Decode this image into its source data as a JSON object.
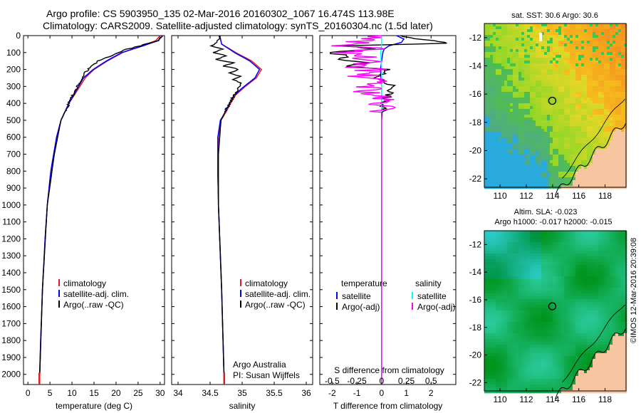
{
  "header": {
    "line1": "Argo profile: CS 5903950_135 02-Mar-2016 20160302_1067 16.474S 113.98E",
    "line2": "Climatology: CARS2009. Satellite-adjusted climatology: synTS_20160304.nc (1.5d later)"
  },
  "colors": {
    "climatology": "#e41a1c",
    "satellite": "#0000ff",
    "argo": "#000000",
    "sal_satellite": "#00ffff",
    "sal_argo": "#ff00ff",
    "land": "#f7c59f"
  },
  "depth_axis": {
    "ticks": [
      "0",
      "100",
      "200",
      "300",
      "400",
      "500",
      "600",
      "700",
      "800",
      "900",
      "1000",
      "1100",
      "1200",
      "1300",
      "1400",
      "1500",
      "1600",
      "1700",
      "1800",
      "1900",
      "2000"
    ],
    "values": [
      0,
      100,
      200,
      300,
      400,
      500,
      600,
      700,
      800,
      900,
      1000,
      1100,
      1200,
      1300,
      1400,
      1500,
      1600,
      1700,
      1800,
      1900,
      2000
    ],
    "ylim": [
      0,
      2060
    ]
  },
  "chart_data": [
    {
      "type": "line",
      "panel": "temperature",
      "xlabel": "temperature (deg C)",
      "xlim": [
        -1,
        31
      ],
      "xticks": [
        0,
        5,
        10,
        15,
        20,
        25,
        30
      ],
      "xtick_labels": [
        "0",
        "5",
        "10",
        "15",
        "20",
        "25",
        "30"
      ],
      "legend": [
        "climatology",
        "satellite-adj. clim.",
        "Argo(..raw -QC)"
      ],
      "series": [
        {
          "name": "climatology",
          "depth": [
            0,
            30,
            60,
            100,
            150,
            200,
            250,
            300,
            400,
            500,
            600,
            800,
            1000,
            1200,
            1500,
            1800,
            2050
          ],
          "values": [
            30.0,
            29.0,
            26.0,
            21.5,
            18.0,
            15.0,
            13.0,
            11.8,
            9.3,
            7.5,
            6.5,
            5.2,
            4.4,
            3.9,
            3.3,
            2.9,
            2.6
          ]
        },
        {
          "name": "satellite-adj. clim.",
          "depth": [
            0,
            30,
            60,
            100,
            150,
            200,
            250,
            300,
            400,
            500,
            600,
            800,
            1000,
            1200,
            1500,
            1800,
            2050
          ],
          "values": [
            30.6,
            29.5,
            26.2,
            21.3,
            17.8,
            14.8,
            12.6,
            11.5,
            9.3,
            7.5,
            6.5,
            5.2,
            4.4,
            3.9,
            3.3,
            2.9,
            2.6
          ]
        },
        {
          "name": "Argo(..raw -QC)",
          "depth": [
            0,
            30,
            60,
            80,
            100,
            150,
            190,
            220,
            260,
            300,
            400,
            500,
            700,
            1000,
            1500,
            2000,
            2050
          ],
          "values": [
            30.6,
            29.6,
            25.5,
            22.5,
            20.5,
            16.0,
            14.0,
            13.0,
            12.3,
            11.2,
            9.3,
            7.5,
            6.0,
            4.4,
            3.3,
            2.7,
            2.6
          ]
        }
      ],
      "annotations": []
    },
    {
      "type": "line",
      "panel": "salinity",
      "xlabel": "salinity",
      "xlim": [
        33.9,
        36.1
      ],
      "xticks": [
        34,
        34.5,
        35,
        35.5,
        36
      ],
      "xtick_labels": [
        "34",
        "34.5",
        "35",
        "35.5",
        "36"
      ],
      "legend": [
        "climatology",
        "satellite-adj. clim.",
        "Argo(..raw -QC)"
      ],
      "series": [
        {
          "name": "climatology",
          "depth": [
            0,
            50,
            100,
            150,
            200,
            250,
            300,
            350,
            400,
            450,
            500,
            600,
            800,
            1000,
            1500,
            2050
          ],
          "values": [
            34.65,
            34.68,
            34.9,
            35.15,
            35.3,
            35.22,
            35.05,
            34.9,
            34.82,
            34.75,
            34.67,
            34.63,
            34.62,
            34.63,
            34.68,
            34.72
          ]
        },
        {
          "name": "satellite-adj. clim.",
          "depth": [
            0,
            50,
            100,
            150,
            200,
            250,
            300,
            350,
            400,
            450,
            500,
            600,
            800,
            1000,
            1500,
            2050
          ],
          "values": [
            34.65,
            34.68,
            34.88,
            35.12,
            35.27,
            35.2,
            35.03,
            34.88,
            34.8,
            34.74,
            34.66,
            34.62,
            34.62,
            34.63,
            34.68,
            34.72
          ]
        },
        {
          "name": "Argo(..raw -QC)",
          "depth": [
            0,
            40,
            60,
            80,
            100,
            120,
            140,
            160,
            180,
            200,
            220,
            240,
            260,
            280,
            300,
            350,
            400,
            500,
            700,
            1000,
            1500,
            2050
          ],
          "values": [
            34.65,
            34.6,
            34.52,
            34.7,
            34.55,
            34.75,
            34.6,
            34.85,
            34.72,
            34.95,
            34.8,
            34.98,
            34.85,
            35.0,
            34.95,
            34.88,
            34.8,
            34.67,
            34.63,
            34.63,
            34.68,
            34.72
          ]
        }
      ],
      "annotations": [
        "Argo Australia",
        "PI: Susan Wijffels"
      ]
    },
    {
      "type": "line",
      "panel": "difference",
      "xlabel": "T difference from climatology",
      "xlabel_top": "S difference from climatology",
      "xlim": [
        -2.5,
        3.0
      ],
      "xticks": [
        -2,
        -1,
        0,
        1,
        2
      ],
      "xtick_labels": [
        "-2",
        "-1",
        "0",
        "1",
        "2"
      ],
      "top_ticks": [
        -0.5,
        -0.25,
        0,
        0.25,
        0.5
      ],
      "top_tick_labels": [
        "-0.5",
        "-0.25",
        "0",
        "0.25",
        "0.5"
      ],
      "legend_left_title": "temperature",
      "legend_right_title": "salinity",
      "legend": [
        "satellite",
        "Argo(-adj)",
        "satellite",
        "Argo(-adj)"
      ],
      "series": [
        {
          "name": "T satellite",
          "depth": [
            0,
            20,
            40,
            60,
            80,
            100,
            150,
            200,
            300,
            500,
            1000,
            2050
          ],
          "values": [
            0.6,
            0.9,
            0.8,
            0.3,
            0.1,
            0.05,
            0.0,
            -0.05,
            0.0,
            0.0,
            0.0,
            0.0
          ]
        },
        {
          "name": "T Argo(-adj)",
          "depth": [
            0,
            30,
            45,
            60,
            80,
            100,
            120,
            140,
            160,
            180,
            200,
            250,
            300,
            350,
            400,
            500,
            1000,
            2050
          ],
          "values": [
            0.6,
            2.0,
            2.7,
            -1.6,
            -0.2,
            -2.2,
            -1.3,
            -1.8,
            -0.6,
            -1.3,
            0.2,
            -0.2,
            0.5,
            0.3,
            0.05,
            0.0,
            0.0,
            0.0
          ]
        },
        {
          "name": "S satellite",
          "depth": [
            0,
            50,
            100,
            200,
            300,
            500,
            1000,
            2050
          ],
          "values": [
            0.0,
            0.0,
            -0.01,
            0.0,
            0.0,
            0.0,
            0.0,
            0.0
          ]
        },
        {
          "name": "S Argo(-adj)",
          "depth": [
            0,
            60,
            80,
            100,
            120,
            140,
            160,
            180,
            200,
            240,
            280,
            320,
            360,
            400,
            500,
            1000,
            2050
          ],
          "values": [
            0.0,
            -0.35,
            -0.05,
            -0.4,
            -0.15,
            -0.3,
            -0.1,
            -0.25,
            -0.1,
            -0.2,
            -0.05,
            -0.15,
            -0.05,
            0.0,
            0.0,
            0.0,
            0.0
          ]
        }
      ],
      "annotations": []
    }
  ],
  "maps": {
    "sst_title": "sat. SST: 30.6  Argo: 30.6",
    "sla_title1": "Altim. SLA: -0.023",
    "sla_title2": "Argo h1000: -0.017 h2000: -0.015",
    "lon_ticks": [
      "110",
      "112",
      "114",
      "116",
      "118"
    ],
    "lat_ticks": [
      "-12",
      "-14",
      "-16",
      "-18",
      "-20",
      "-22"
    ],
    "float_lon": 113.98,
    "float_lat": -16.474
  },
  "stamp": "©IMOS 12-Mar-2016 20:39:08"
}
